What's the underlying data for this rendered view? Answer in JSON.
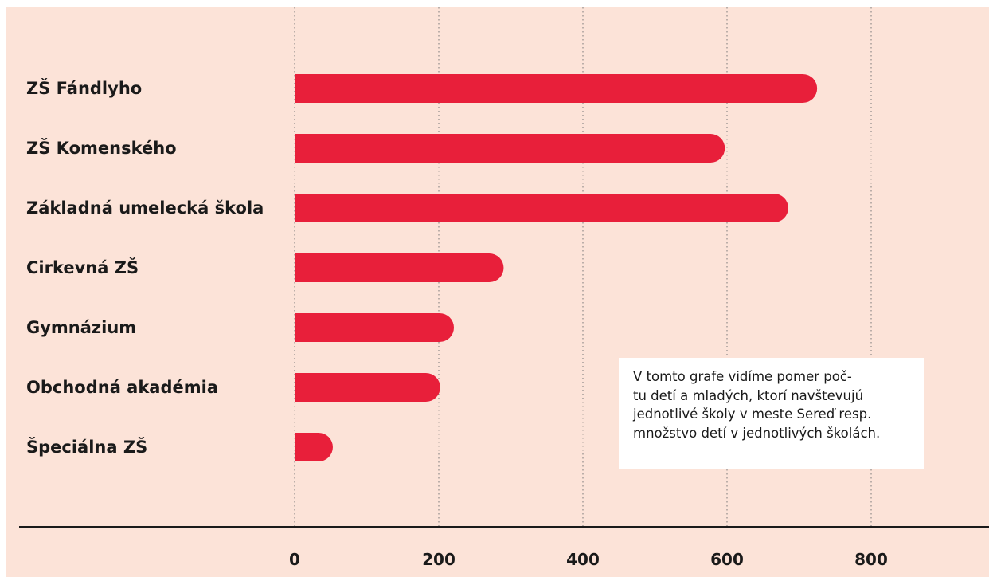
{
  "chart_data": {
    "type": "bar",
    "orientation": "horizontal",
    "categories": [
      "ZŠ Fándlyho",
      "ZŠ Komenského",
      "Základná umelecká škola",
      "Cirkevná ZŠ",
      "Gymnázium",
      "Obchodná akadémia",
      "Špeciálna ZŠ"
    ],
    "values": [
      725,
      597,
      685,
      290,
      221,
      202,
      53
    ],
    "x_ticks": [
      "0",
      "200",
      "400",
      "600",
      "800"
    ],
    "xlim": [
      0,
      960
    ],
    "grid": true,
    "bar_color": "#e81f3a",
    "background_color": "#fce3d8",
    "annotation": {
      "lines": [
        "V tomto grafe vidíme pomer poč-",
        "tu detí a mladých, ktorí navštevujú",
        "jednotlivé školy v meste Sereď resp.",
        "množstvo detí v jednotlivých školách."
      ]
    }
  }
}
